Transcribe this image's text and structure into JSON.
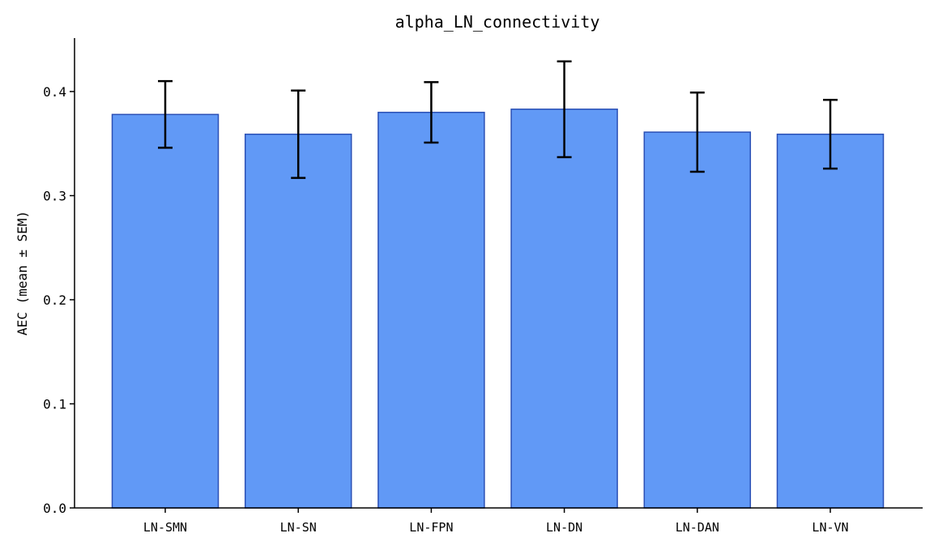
{
  "colors": {
    "bar_fill": "#6199f6",
    "bar_edge": "#2a4fb5",
    "error_bar": "#000000"
  },
  "chart_data": {
    "type": "bar",
    "title": "alpha_LN_connectivity",
    "xlabel": "",
    "ylabel": "AEC (mean ± SEM)",
    "categories": [
      "LN-SMN",
      "LN-SN",
      "LN-FPN",
      "LN-DN",
      "LN-DAN",
      "LN-VN"
    ],
    "values": [
      0.378,
      0.359,
      0.38,
      0.383,
      0.361,
      0.359
    ],
    "errors": [
      0.032,
      0.042,
      0.029,
      0.046,
      0.038,
      0.033
    ],
    "ylim": [
      0,
      0.45
    ],
    "yticks": [
      0.0,
      0.1,
      0.2,
      0.3,
      0.4
    ],
    "ytick_labels": [
      "0.0",
      "0.1",
      "0.2",
      "0.3",
      "0.4"
    ],
    "grid": false,
    "legend": "none"
  }
}
